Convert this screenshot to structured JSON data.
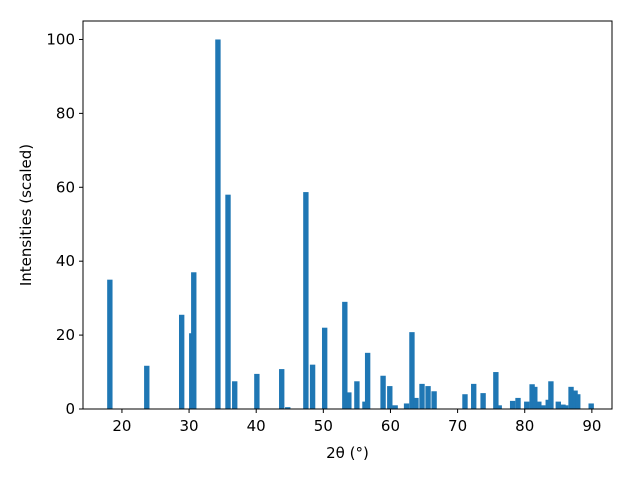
{
  "chart_data": {
    "type": "bar",
    "x": [
      18.2,
      23.7,
      28.9,
      30.4,
      30.7,
      34.3,
      35.8,
      36.8,
      40.1,
      43.8,
      44.7,
      47.4,
      48.4,
      50.2,
      53.2,
      53.8,
      55.0,
      56.2,
      56.6,
      58.9,
      59.9,
      60.7,
      62.4,
      63.2,
      63.8,
      64.7,
      65.6,
      66.5,
      71.1,
      72.4,
      73.8,
      75.7,
      76.2,
      78.2,
      79.0,
      80.3,
      81.1,
      81.5,
      82.1,
      82.7,
      83.5,
      83.9,
      85.0,
      85.7,
      86.1,
      86.9,
      87.5,
      87.9,
      89.9
    ],
    "values": [
      35,
      11.7,
      25.5,
      20.5,
      37,
      100,
      58,
      7.5,
      9.5,
      10.8,
      0.5,
      58.7,
      12,
      22,
      29,
      4.5,
      7.5,
      2,
      15.2,
      9,
      6.2,
      1,
      1.5,
      20.8,
      3,
      6.8,
      6.2,
      4.8,
      4,
      6.8,
      4.3,
      10,
      1,
      2.2,
      3,
      2,
      6.7,
      6,
      2,
      1,
      2.5,
      7.5,
      2,
      1.2,
      1,
      6,
      5,
      4,
      1.5
    ],
    "bar_width": 0.8,
    "color": "#1f77b4",
    "xlabel": "2θ (°)",
    "ylabel": "Intensities (scaled)",
    "xlim": [
      14.2,
      93.0
    ],
    "xticks": [
      20,
      30,
      40,
      50,
      60,
      70,
      80,
      90
    ],
    "ylim": [
      0,
      105
    ],
    "yticks": [
      0,
      20,
      40,
      60,
      80,
      100
    ],
    "grid": false
  }
}
